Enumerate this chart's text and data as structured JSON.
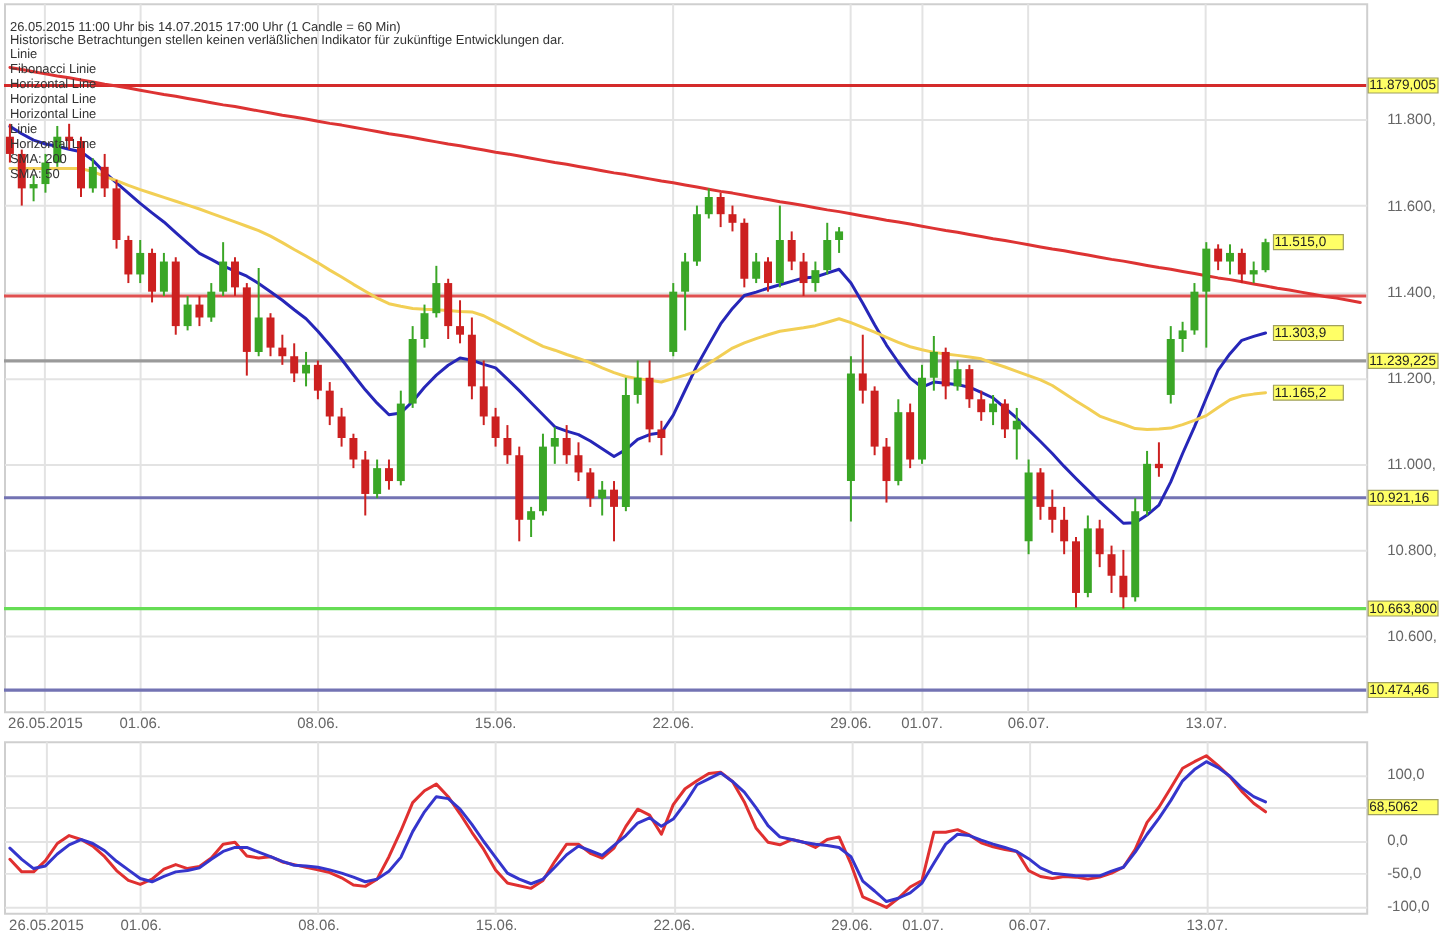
{
  "chart_data": [
    {
      "type": "candlestick",
      "title": "26.05.2015 11:00 Uhr bis 14.07.2015 17:00 Uhr (1 Candle = 60 Min)",
      "subtitle": "Historische Betrachtungen stellen keinen verläßlichen Indikator für zukünftige Entwicklungen dar.",
      "categories": [
        null,
        null,
        null,
        "26.05.2015",
        null,
        null,
        null,
        null,
        null,
        null,
        null,
        "01.06.",
        null,
        null,
        null,
        null,
        null,
        null,
        null,
        null,
        null,
        null,
        null,
        null,
        null,
        null,
        "08.06.",
        null,
        null,
        null,
        null,
        null,
        null,
        null,
        null,
        null,
        null,
        null,
        null,
        null,
        null,
        "15.06.",
        null,
        null,
        null,
        null,
        null,
        null,
        null,
        null,
        null,
        null,
        null,
        null,
        null,
        null,
        "22.06.",
        null,
        null,
        null,
        null,
        null,
        null,
        null,
        null,
        null,
        null,
        null,
        null,
        null,
        null,
        "29.06.",
        null,
        null,
        null,
        null,
        null,
        "01.07.",
        null,
        null,
        null,
        null,
        null,
        null,
        null,
        null,
        "06.07.",
        null,
        null,
        null,
        null,
        null,
        null,
        null,
        null,
        null,
        null,
        null,
        null,
        null,
        null,
        "13.07.",
        null,
        null,
        null,
        null,
        null,
        null,
        null,
        null,
        null,
        null,
        null,
        null,
        null
      ],
      "ohlc": [
        [
          11760,
          11790,
          11700,
          11720
        ],
        [
          11720,
          11730,
          11600,
          11640
        ],
        [
          11640,
          11670,
          11610,
          11650
        ],
        [
          11650,
          11720,
          11630,
          11700
        ],
        [
          11700,
          11785,
          11690,
          11760
        ],
        [
          11760,
          11790,
          11730,
          11750
        ],
        [
          11750,
          11760,
          11620,
          11640
        ],
        [
          11640,
          11710,
          11630,
          11690
        ],
        [
          11690,
          11720,
          11620,
          11640
        ],
        [
          11640,
          11660,
          11500,
          11520
        ],
        [
          11520,
          11530,
          11420,
          11440
        ],
        [
          11440,
          11520,
          11420,
          11490
        ],
        [
          11490,
          11500,
          11375,
          11400
        ],
        [
          11400,
          11490,
          11390,
          11470
        ],
        [
          11470,
          11480,
          11300,
          11320
        ],
        [
          11320,
          11390,
          11310,
          11370
        ],
        [
          11370,
          11390,
          11320,
          11340
        ],
        [
          11340,
          11420,
          11330,
          11400
        ],
        [
          11400,
          11515,
          11390,
          11470
        ],
        [
          11470,
          11480,
          11390,
          11410
        ],
        [
          11410,
          11420,
          11205,
          11260
        ],
        [
          11260,
          11455,
          11250,
          11340
        ],
        [
          11340,
          11350,
          11250,
          11270
        ],
        [
          11270,
          11300,
          11230,
          11250
        ],
        [
          11250,
          11280,
          11190,
          11210
        ],
        [
          11210,
          11260,
          11180,
          11230
        ],
        [
          11230,
          11240,
          11150,
          11170
        ],
        [
          11170,
          11190,
          11090,
          11110
        ],
        [
          11110,
          11130,
          11040,
          11060
        ],
        [
          11060,
          11070,
          10990,
          11010
        ],
        [
          11010,
          11030,
          10880,
          10930
        ],
        [
          10930,
          11010,
          10920,
          10990
        ],
        [
          10990,
          11010,
          10940,
          10960
        ],
        [
          10960,
          11170,
          10950,
          11140
        ],
        [
          11140,
          11320,
          11130,
          11290
        ],
        [
          11290,
          11370,
          11270,
          11350
        ],
        [
          11350,
          11460,
          11340,
          11420
        ],
        [
          11420,
          11430,
          11290,
          11320
        ],
        [
          11320,
          11380,
          11280,
          11300
        ],
        [
          11300,
          11340,
          11150,
          11180
        ],
        [
          11180,
          11240,
          11090,
          11110
        ],
        [
          11110,
          11130,
          11040,
          11060
        ],
        [
          11060,
          11090,
          11000,
          11020
        ],
        [
          11020,
          11040,
          10820,
          10870
        ],
        [
          10870,
          10900,
          10830,
          10890
        ],
        [
          10890,
          11070,
          10880,
          11040
        ],
        [
          11040,
          11085,
          11000,
          11060
        ],
        [
          11060,
          11090,
          11000,
          11020
        ],
        [
          11020,
          11050,
          10960,
          10980
        ],
        [
          10980,
          10990,
          10900,
          10920
        ],
        [
          10920,
          10960,
          10880,
          10940
        ],
        [
          10940,
          10960,
          10820,
          10900
        ],
        [
          10900,
          11200,
          10890,
          11160
        ],
        [
          11160,
          11240,
          11140,
          11200
        ],
        [
          11200,
          11240,
          11050,
          11080
        ],
        [
          11080,
          11100,
          11020,
          11060
        ],
        [
          11260,
          11420,
          11250,
          11400
        ],
        [
          11400,
          11490,
          11310,
          11470
        ],
        [
          11470,
          11600,
          11460,
          11580
        ],
        [
          11580,
          11640,
          11570,
          11620
        ],
        [
          11620,
          11630,
          11550,
          11580
        ],
        [
          11580,
          11600,
          11540,
          11560
        ],
        [
          11560,
          11570,
          11410,
          11430
        ],
        [
          11430,
          11490,
          11420,
          11470
        ],
        [
          11470,
          11480,
          11400,
          11420
        ],
        [
          11420,
          11600,
          11410,
          11520
        ],
        [
          11520,
          11540,
          11450,
          11470
        ],
        [
          11470,
          11490,
          11390,
          11420
        ],
        [
          11420,
          11470,
          11400,
          11450
        ],
        [
          11450,
          11560,
          11440,
          11520
        ],
        [
          11520,
          11550,
          11490,
          11540
        ],
        [
          10960,
          11250,
          10866,
          11210
        ],
        [
          11210,
          11300,
          11140,
          11170
        ],
        [
          11170,
          11180,
          11020,
          11040
        ],
        [
          11040,
          11060,
          10910,
          10960
        ],
        [
          10960,
          11150,
          10950,
          11120
        ],
        [
          11120,
          11140,
          10990,
          11010
        ],
        [
          11010,
          11230,
          11000,
          11200
        ],
        [
          11200,
          11297,
          11170,
          11260
        ],
        [
          11260,
          11270,
          11150,
          11180
        ],
        [
          11180,
          11240,
          11170,
          11220
        ],
        [
          11220,
          11230,
          11130,
          11150
        ],
        [
          11150,
          11170,
          11100,
          11120
        ],
        [
          11120,
          11160,
          11090,
          11140
        ],
        [
          11140,
          11150,
          11060,
          11080
        ],
        [
          11080,
          11130,
          11010,
          11100
        ],
        [
          10820,
          11010,
          10790,
          10980
        ],
        [
          10980,
          10990,
          10870,
          10900
        ],
        [
          10900,
          10940,
          10840,
          10870
        ],
        [
          10870,
          10900,
          10790,
          10820
        ],
        [
          10820,
          10830,
          10666,
          10700
        ],
        [
          10700,
          10880,
          10690,
          10850
        ],
        [
          10850,
          10870,
          10760,
          10790
        ],
        [
          10790,
          10810,
          10700,
          10740
        ],
        [
          10740,
          10800,
          10664,
          10690
        ],
        [
          10690,
          10920,
          10680,
          10890
        ],
        [
          10890,
          11030,
          10880,
          11000
        ],
        [
          11000,
          11050,
          10970,
          10990
        ],
        [
          11160,
          11320,
          11140,
          11290
        ],
        [
          11290,
          11330,
          11260,
          11310
        ],
        [
          11310,
          11420,
          11300,
          11400
        ],
        [
          11400,
          11515,
          11270,
          11500
        ],
        [
          11500,
          11510,
          11450,
          11470
        ],
        [
          11470,
          11510,
          11440,
          11490
        ],
        [
          11490,
          11500,
          11420,
          11440
        ],
        [
          11440,
          11470,
          11420,
          11450
        ],
        [
          11450,
          11523,
          11445,
          11515
        ],
        null,
        null,
        null,
        null,
        null,
        null,
        null,
        null
      ],
      "colors": [
        "#cc2020",
        "#cc2020",
        "#3aa626",
        "#3aa626",
        "#3aa626",
        "#cc2020",
        "#cc2020",
        "#3aa626",
        "#cc2020",
        "#cc2020",
        "#cc2020",
        "#3aa626",
        "#cc2020",
        "#3aa626",
        "#cc2020",
        "#3aa626",
        "#cc2020",
        "#3aa626",
        "#3aa626",
        "#cc2020",
        "#cc2020",
        "#3aa626",
        "#cc2020",
        "#cc2020",
        "#cc2020",
        "#3aa626",
        "#cc2020",
        "#cc2020",
        "#cc2020",
        "#cc2020",
        "#cc2020",
        "#3aa626",
        "#cc2020",
        "#3aa626",
        "#3aa626",
        "#3aa626",
        "#3aa626",
        "#cc2020",
        "#cc2020",
        "#cc2020",
        "#cc2020",
        "#cc2020",
        "#cc2020",
        "#cc2020",
        "#3aa626",
        "#3aa626",
        "#3aa626",
        "#cc2020",
        "#cc2020",
        "#cc2020",
        "#3aa626",
        "#cc2020",
        "#3aa626",
        "#3aa626",
        "#cc2020",
        "#cc2020",
        "#3aa626",
        "#3aa626",
        "#3aa626",
        "#3aa626",
        "#cc2020",
        "#cc2020",
        "#cc2020",
        "#3aa626",
        "#cc2020",
        "#3aa626",
        "#cc2020",
        "#cc2020",
        "#3aa626",
        "#3aa626",
        "#3aa626",
        "#3aa626",
        "#cc2020",
        "#cc2020",
        "#cc2020",
        "#3aa626",
        "#cc2020",
        "#3aa626",
        "#3aa626",
        "#cc2020",
        "#3aa626",
        "#cc2020",
        "#cc2020",
        "#3aa626",
        "#cc2020",
        "#3aa626",
        "#3aa626",
        "#cc2020",
        "#cc2020",
        "#cc2020",
        "#cc2020",
        "#3aa626",
        "#cc2020",
        "#cc2020",
        "#cc2020",
        "#3aa626",
        "#3aa626",
        "#cc2020",
        "#3aa626",
        "#3aa626",
        "#3aa626",
        "#3aa626",
        "#cc2020",
        "#3aa626",
        "#cc2020",
        "#3aa626",
        "#3aa626",
        null,
        null,
        null,
        null,
        null,
        null,
        null,
        null
      ],
      "value_labels": [
        null,
        null,
        null,
        null,
        null,
        null,
        null,
        null,
        null,
        null,
        null,
        null,
        null,
        null,
        null,
        null,
        null,
        null,
        null,
        null,
        null,
        null,
        null,
        null,
        null,
        null,
        null,
        null,
        null,
        null,
        null,
        null,
        null,
        null,
        null,
        null,
        null,
        null,
        null,
        null,
        null,
        null,
        null,
        null,
        null,
        null,
        null,
        null,
        null,
        null,
        null,
        null,
        null,
        null,
        null,
        null,
        null,
        null,
        null,
        null,
        null,
        null,
        null,
        null,
        null,
        null,
        null,
        null,
        null,
        null,
        null,
        null,
        null,
        null,
        null,
        null,
        null,
        null,
        null,
        null,
        null,
        null,
        null,
        null,
        null,
        null,
        null,
        null,
        null,
        null,
        null,
        null,
        null,
        null,
        null,
        null,
        null,
        null,
        null,
        null,
        null,
        null,
        null,
        null,
        null,
        null,
        "11.515,0",
        null,
        null,
        null,
        null,
        null,
        null,
        null,
        null
      ],
      "series": [
        {
          "type": "line",
          "color": "#2626b8",
          "values": [
            11784,
            11767,
            11752,
            11743,
            11738,
            11731,
            11725,
            11705,
            11677,
            11653,
            11629,
            11605,
            11583,
            11562,
            11537,
            11513,
            11489,
            11475,
            11460,
            11448,
            11436,
            11419,
            11400,
            11380,
            11358,
            11337,
            11308,
            11276,
            11243,
            11207,
            11172,
            11141,
            11114,
            11118,
            11145,
            11178,
            11206,
            11229,
            11246,
            11241,
            11231,
            11223,
            11197,
            11170,
            11142,
            11114,
            11086,
            11076,
            11068,
            11053,
            11035,
            11017,
            11033,
            11057,
            11068,
            11072,
            11113,
            11171,
            11228,
            11277,
            11325,
            11361,
            11391,
            11399,
            11408,
            11416,
            11424,
            11432,
            11434,
            11443,
            11452,
            11420,
            11373,
            11323,
            11276,
            11236,
            11199,
            11178,
            11190,
            11187,
            11184,
            11178,
            11166,
            11153,
            11130,
            11106,
            11079,
            11052,
            11024,
            10994,
            10966,
            10939,
            10912,
            10887,
            10862,
            10863,
            10881,
            10904,
            10958,
            11024,
            11086,
            11153,
            11218,
            11256,
            11287,
            11296,
            11303.9,
            null,
            null,
            null,
            null,
            null,
            null,
            null,
            null
          ],
          "value_labels": [
            null,
            null,
            null,
            null,
            null,
            null,
            null,
            null,
            null,
            null,
            null,
            null,
            null,
            null,
            null,
            null,
            null,
            null,
            null,
            null,
            null,
            null,
            null,
            null,
            null,
            null,
            null,
            null,
            null,
            null,
            null,
            null,
            null,
            null,
            null,
            null,
            null,
            null,
            null,
            null,
            null,
            null,
            null,
            null,
            null,
            null,
            null,
            null,
            null,
            null,
            null,
            null,
            null,
            null,
            null,
            null,
            null,
            null,
            null,
            null,
            null,
            null,
            null,
            null,
            null,
            null,
            null,
            null,
            null,
            null,
            null,
            null,
            null,
            null,
            null,
            null,
            null,
            null,
            null,
            null,
            null,
            null,
            null,
            null,
            null,
            null,
            null,
            null,
            null,
            null,
            null,
            null,
            null,
            null,
            null,
            null,
            null,
            null,
            null,
            null,
            null,
            null,
            null,
            null,
            null,
            null,
            "11.303,9",
            null,
            null,
            null,
            null,
            null,
            null,
            null,
            null
          ]
        },
        {
          "type": "line",
          "color": "#f2cf55",
          "values": [
            11686,
            11686,
            11686,
            11686,
            11686,
            11686,
            11686,
            11679,
            11668,
            11658,
            11647,
            11637,
            11628,
            11619,
            11610,
            11601,
            11592,
            11582,
            11572,
            11562,
            11552,
            11542,
            11529,
            11514,
            11498,
            11483,
            11467,
            11450,
            11434,
            11417,
            11401,
            11385,
            11372,
            11366,
            11361,
            11359,
            11358,
            11356,
            11354,
            11353,
            11344,
            11330,
            11316,
            11301,
            11287,
            11273,
            11264,
            11254,
            11245,
            11235,
            11223,
            11212,
            11203,
            11198,
            11194,
            11190,
            11198,
            11206,
            11215,
            11233,
            11251,
            11269,
            11281,
            11291,
            11300,
            11308,
            11312,
            11316,
            11321,
            11329,
            11337,
            11328,
            11317,
            11306,
            11294,
            11282,
            11272,
            11265,
            11259,
            11255,
            11252,
            11248,
            11244,
            11234,
            11225,
            11215,
            11205,
            11195,
            11182,
            11164,
            11146,
            11129,
            11111,
            11101,
            11092,
            11082,
            11080,
            11081,
            11083,
            11091,
            11101,
            11112,
            11131,
            11149,
            11158,
            11162,
            11165.2,
            null,
            null,
            null,
            null,
            null,
            null,
            null,
            null
          ],
          "value_labels": [
            null,
            null,
            null,
            null,
            null,
            null,
            null,
            null,
            null,
            null,
            null,
            null,
            null,
            null,
            null,
            null,
            null,
            null,
            null,
            null,
            null,
            null,
            null,
            null,
            null,
            null,
            null,
            null,
            null,
            null,
            null,
            null,
            null,
            null,
            null,
            null,
            null,
            null,
            null,
            null,
            null,
            null,
            null,
            null,
            null,
            null,
            null,
            null,
            null,
            null,
            null,
            null,
            null,
            null,
            null,
            null,
            null,
            null,
            null,
            null,
            null,
            null,
            null,
            null,
            null,
            null,
            null,
            null,
            null,
            null,
            null,
            null,
            null,
            null,
            null,
            null,
            null,
            null,
            null,
            null,
            null,
            null,
            null,
            null,
            null,
            null,
            null,
            null,
            null,
            null,
            null,
            null,
            null,
            null,
            null,
            null,
            null,
            null,
            null,
            null,
            null,
            null,
            null,
            null,
            null,
            null,
            "11.165,2",
            null,
            null,
            null,
            null,
            null,
            null,
            null,
            null
          ]
        },
        {
          "type": "line",
          "color": "#dd3333",
          "values": [
            11921,
            11916,
            11911,
            11906,
            11901,
            11897,
            11892,
            11887,
            11882,
            11878,
            11873,
            11868,
            11863,
            11858,
            11854,
            11849,
            11844,
            11839,
            11834,
            11830,
            11825,
            11820,
            11815,
            11810,
            11806,
            11801,
            11796,
            11791,
            11787,
            11782,
            11777,
            11772,
            11767,
            11763,
            11758,
            11753,
            11748,
            11743,
            11739,
            11734,
            11729,
            11724,
            11720,
            11715,
            11710,
            11705,
            11700,
            11696,
            11691,
            11686,
            11681,
            11676,
            11672,
            11667,
            11662,
            11657,
            11653,
            11648,
            11643,
            11638,
            11633,
            11629,
            11624,
            11619,
            11614,
            11609,
            11605,
            11600,
            11595,
            11590,
            11586,
            11581,
            11576,
            11571,
            11566,
            11562,
            11557,
            11552,
            11547,
            11542,
            11538,
            11533,
            11528,
            11523,
            11519,
            11514,
            11509,
            11504,
            11499,
            11495,
            11490,
            11485,
            11480,
            11475,
            11471,
            11466,
            11461,
            11456,
            11452,
            11447,
            11442,
            11437,
            11432,
            11428,
            11423,
            11418,
            11413,
            11408,
            11404,
            11399,
            11394,
            11389,
            11385,
            11380,
            11375
          ]
        }
      ],
      "ref_lines": [
        {
          "axis": "y",
          "value": 11879.005,
          "label": "11.879,005",
          "color": "#d42a2a"
        },
        {
          "axis": "y",
          "value": 11390,
          "color": "#e05050"
        },
        {
          "axis": "y",
          "value": 11239.225,
          "label": "11.239,225",
          "color": "#9a9a9a"
        },
        {
          "axis": "y",
          "value": 10921.16,
          "label": "10.921,16",
          "color": "#7373b3"
        },
        {
          "axis": "y",
          "value": 10663.8,
          "label": "10.663,800",
          "color": "#66dd55"
        },
        {
          "axis": "y",
          "value": 10474.46,
          "label": "10.474,46",
          "color": "#7373b3"
        }
      ],
      "annotations": [
        "Linie",
        "Fibonacci Linie",
        "Horizontal Line",
        "Horizontal Line",
        "Horizontal Line",
        "Linie",
        "Horizontal Line",
        "SMA: 200",
        "SMA: 50"
      ],
      "ylim": [
        10425,
        12070
      ],
      "yticks": [
        {
          "value": 10600,
          "label": "10.600,"
        },
        {
          "value": 10800,
          "label": "10.800,"
        },
        {
          "value": 11000,
          "label": "11.000,"
        },
        {
          "value": 11200,
          "label": "11.200,"
        },
        {
          "value": 11400,
          "label": "11.400,"
        },
        {
          "value": 11600,
          "label": "11.600,"
        },
        {
          "value": 11800,
          "label": "11.800,"
        }
      ],
      "grid": true
    },
    {
      "type": "line",
      "categories": [
        null,
        null,
        null,
        "26.05.2015",
        null,
        null,
        null,
        null,
        null,
        null,
        null,
        "01.06.",
        null,
        null,
        null,
        null,
        null,
        null,
        null,
        null,
        null,
        null,
        null,
        null,
        null,
        null,
        "08.06.",
        null,
        null,
        null,
        null,
        null,
        null,
        null,
        null,
        null,
        null,
        null,
        null,
        null,
        null,
        "15.06.",
        null,
        null,
        null,
        null,
        null,
        null,
        null,
        null,
        null,
        null,
        null,
        null,
        null,
        null,
        "22.06.",
        null,
        null,
        null,
        null,
        null,
        null,
        null,
        null,
        null,
        null,
        null,
        null,
        null,
        null,
        "29.06.",
        null,
        null,
        null,
        null,
        null,
        "01.07.",
        null,
        null,
        null,
        null,
        null,
        null,
        null,
        null,
        "06.07.",
        null,
        null,
        null,
        null,
        null,
        null,
        null,
        null,
        null,
        null,
        null,
        null,
        null,
        null,
        "13.07.",
        null,
        null,
        null,
        null,
        null,
        null,
        null,
        null,
        null,
        null,
        null,
        null,
        null
      ],
      "series": [
        {
          "color": "#e03030",
          "values": [
            -29,
            -48,
            -48,
            -31,
            -5,
            7,
            1,
            -9,
            -25,
            -46,
            -61,
            -67,
            -59,
            -44,
            -37,
            -43,
            -40,
            -27,
            -6,
            -3,
            -24,
            -27,
            -25,
            -33,
            -37,
            -41,
            -45,
            -49,
            -57,
            -68,
            -70,
            -59,
            -25,
            14,
            57,
            75,
            85,
            66,
            40,
            12,
            -14,
            -45,
            -65,
            -69,
            -73,
            -61,
            -32,
            -6,
            -6,
            -20,
            -27,
            -12,
            21,
            47,
            38,
            9,
            54,
            78,
            90,
            101,
            103,
            89,
            58,
            18,
            -3,
            -7,
            1,
            -3,
            -11,
            1,
            5,
            -36,
            -86,
            -94,
            -102,
            -88,
            -71,
            -61,
            12,
            12,
            16,
            8,
            -4,
            -10,
            -14,
            -17,
            -46,
            -55,
            -58,
            -55,
            -56,
            -59,
            -56,
            -50,
            -41,
            -14,
            27,
            50,
            79,
            109,
            119,
            128,
            113,
            96,
            74,
            56,
            43,
            null,
            null,
            null,
            null,
            null,
            null,
            null,
            null
          ]
        },
        {
          "color": "#3535cc",
          "values": [
            -12,
            -29,
            -43,
            -39,
            -21,
            -7,
            1,
            -5,
            -16,
            -32,
            -45,
            -58,
            -63,
            -55,
            -48,
            -46,
            -42,
            -29,
            -17,
            -11,
            -11,
            -18,
            -25,
            -32,
            -38,
            -39,
            -41,
            -45,
            -50,
            -56,
            -63,
            -59,
            -47,
            -26,
            13,
            43,
            66,
            63,
            47,
            24,
            -2,
            -26,
            -50,
            -59,
            -66,
            -59,
            -41,
            -22,
            -9,
            -16,
            -23,
            -8,
            7,
            26,
            34,
            21,
            32,
            56,
            84,
            93,
            102,
            89,
            73,
            49,
            22,
            5,
            1,
            -3,
            -6,
            -8,
            -11,
            -25,
            -62,
            -77,
            -93,
            -88,
            -80,
            -65,
            -35,
            -6,
            9,
            7,
            0,
            -6,
            -11,
            -17,
            -28,
            -42,
            -50,
            -52,
            -54,
            -54,
            -54,
            -47,
            -41,
            -18,
            9,
            33,
            60,
            90,
            107,
            119,
            110,
            97,
            79,
            66,
            58,
            null,
            null,
            null,
            null,
            null,
            null,
            null,
            null
          ]
        }
      ],
      "annotations": [
        "68,5062"
      ],
      "ylim": [
        -110,
        150
      ],
      "yticks": [
        {
          "value": -100,
          "label": "-100,0"
        },
        {
          "value": -50,
          "label": "-50,0"
        },
        {
          "value": 0,
          "label": "0,0"
        },
        {
          "value": 50,
          "label": null
        },
        {
          "value": 100,
          "label": "100,0"
        }
      ],
      "grid": true
    }
  ]
}
